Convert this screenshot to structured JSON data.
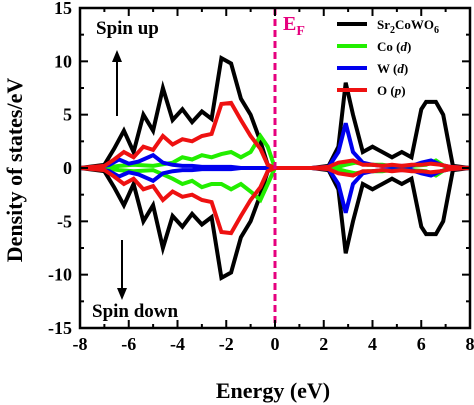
{
  "chart_data": {
    "type": "line",
    "xlabel": "Energy (eV)",
    "ylabel": "Density of states/eV",
    "xlim": [
      -8,
      8
    ],
    "ylim": [
      -15,
      15
    ],
    "x_ticks": [
      -8,
      -6,
      -4,
      -2,
      0,
      2,
      4,
      6,
      8
    ],
    "y_ticks": [
      -15,
      -10,
      -5,
      0,
      5,
      10,
      15
    ],
    "grid": false,
    "legend_position": "top-right",
    "fermi_level": {
      "x": 0,
      "label": "E",
      "subscript": "F",
      "color": "#e6007e"
    },
    "annotations": [
      {
        "text": "Spin up",
        "arrow": "up"
      },
      {
        "text": "Spin down",
        "arrow": "down"
      }
    ],
    "series": [
      {
        "legend_main": "Sr",
        "legend_sub": "2",
        "legend_main2": "CoWO",
        "legend_sub2": "6",
        "color": "#000000",
        "x": [
          -8.0,
          -7.0,
          -6.6,
          -6.2,
          -5.8,
          -5.4,
          -5.0,
          -4.6,
          -4.2,
          -3.8,
          -3.4,
          -3.0,
          -2.6,
          -2.2,
          -1.8,
          -1.4,
          -1.0,
          -0.6,
          -0.3,
          0.0,
          1.5,
          2.2,
          2.6,
          2.9,
          3.2,
          3.6,
          4.0,
          4.4,
          4.8,
          5.2,
          5.6,
          6.0,
          6.2,
          6.6,
          6.9,
          7.3,
          8.0
        ],
        "up": [
          0,
          0.3,
          1.8,
          3.5,
          1.5,
          5.0,
          3.5,
          7.5,
          4.5,
          5.5,
          4.3,
          5.3,
          4.6,
          10.3,
          9.8,
          6.5,
          5.0,
          2.5,
          0.3,
          0,
          0,
          0.2,
          2.0,
          8.0,
          5.0,
          1.5,
          2.0,
          1.5,
          1.0,
          1.5,
          1.0,
          5.5,
          6.2,
          6.2,
          5.0,
          0.2,
          0
        ],
        "down": [
          0,
          -0.3,
          -1.8,
          -3.5,
          -1.5,
          -5.0,
          -3.5,
          -7.5,
          -4.5,
          -5.5,
          -4.3,
          -5.3,
          -4.6,
          -10.3,
          -9.8,
          -6.5,
          -5.0,
          -2.5,
          -0.3,
          0,
          0,
          -0.2,
          -2.0,
          -8.0,
          -5.0,
          -1.5,
          -2.0,
          -1.5,
          -1.0,
          -1.5,
          -1.0,
          -5.5,
          -6.2,
          -6.2,
          -5.0,
          -0.2,
          0
        ]
      },
      {
        "legend_main": "Co (",
        "legend_ital": "d",
        "legend_end": ")",
        "color": "#22ee00",
        "x": [
          -8.0,
          -7.0,
          -6.4,
          -5.8,
          -5.0,
          -4.2,
          -3.8,
          -3.4,
          -3.0,
          -2.6,
          -2.2,
          -1.8,
          -1.4,
          -1.0,
          -0.6,
          -0.3,
          0.0,
          1.5,
          2.4,
          2.9,
          3.3,
          3.8,
          4.4,
          5.0,
          5.6,
          6.2,
          6.6,
          7.0,
          8.0
        ],
        "up": [
          0,
          0,
          0.2,
          0.3,
          0.2,
          0.5,
          1.0,
          0.8,
          1.2,
          1.0,
          1.3,
          1.5,
          1.0,
          1.5,
          3.0,
          2.0,
          0,
          0,
          0,
          0.3,
          0.5,
          0.3,
          0.3,
          0.1,
          0.2,
          0.3,
          0.7,
          0.1,
          0
        ],
        "down": [
          0,
          0,
          -0.2,
          -0.3,
          -0.2,
          -1.0,
          -1.5,
          -1.2,
          -1.8,
          -1.5,
          -1.5,
          -2.0,
          -1.5,
          -2.2,
          -3.0,
          -1.5,
          0,
          0,
          0,
          -0.3,
          -0.5,
          -0.3,
          -0.3,
          -0.1,
          -0.2,
          -0.3,
          -0.7,
          -0.1,
          0
        ]
      },
      {
        "legend_main": "W (",
        "legend_ital": "d",
        "legend_end": ")",
        "color": "#0000ee",
        "x": [
          -8.0,
          -7.2,
          -6.8,
          -6.4,
          -6.0,
          -5.6,
          -5.0,
          -4.6,
          -4.2,
          -3.8,
          -3.4,
          -3.0,
          -2.6,
          -2.2,
          -1.8,
          -1.4,
          -1.0,
          -0.6,
          0.0,
          1.5,
          2.2,
          2.6,
          2.9,
          3.2,
          3.6,
          4.0,
          4.4,
          4.8,
          5.2,
          5.6,
          6.0,
          6.4,
          6.8,
          7.2,
          8.0
        ],
        "up": [
          0,
          0.1,
          0.3,
          0.8,
          0.4,
          0.6,
          1.2,
          0.5,
          0.3,
          0.2,
          0.2,
          0.1,
          0.1,
          0.1,
          0.1,
          0.0,
          0.0,
          0.0,
          0,
          0,
          0.1,
          1.5,
          4.2,
          1.5,
          0.5,
          0.3,
          0.2,
          0.2,
          0.2,
          0.2,
          0.5,
          0.7,
          0.3,
          0.1,
          0
        ],
        "down": [
          0,
          -0.1,
          -0.3,
          -0.8,
          -0.4,
          -0.6,
          -1.2,
          -0.5,
          -0.3,
          -0.2,
          -0.2,
          -0.1,
          -0.1,
          -0.1,
          -0.1,
          0.0,
          0.0,
          0.0,
          0,
          0,
          -0.1,
          -1.5,
          -4.2,
          -1.5,
          -0.5,
          -0.3,
          -0.2,
          -0.2,
          -0.2,
          -0.2,
          -0.5,
          -0.7,
          -0.3,
          -0.1,
          0
        ]
      },
      {
        "legend_main": "O (",
        "legend_ital": "p",
        "legend_end": ")",
        "color": "#ee1111",
        "x": [
          -8.0,
          -7.0,
          -6.6,
          -6.2,
          -5.8,
          -5.4,
          -5.0,
          -4.6,
          -4.2,
          -3.8,
          -3.4,
          -3.0,
          -2.6,
          -2.2,
          -1.8,
          -1.4,
          -1.0,
          -0.6,
          -0.3,
          0.0,
          1.5,
          2.2,
          2.6,
          2.9,
          3.2,
          3.6,
          4.0,
          4.4,
          4.8,
          5.2,
          5.6,
          6.0,
          6.4,
          6.8,
          7.2,
          8.0
        ],
        "up": [
          0,
          0.2,
          0.8,
          1.5,
          1.0,
          2.0,
          1.7,
          3.0,
          2.2,
          2.7,
          2.5,
          3.0,
          3.2,
          6.0,
          6.1,
          4.5,
          3.0,
          1.8,
          0.3,
          0,
          0,
          0.1,
          0.5,
          0.6,
          0.7,
          0.3,
          0.3,
          0.2,
          0.3,
          0.2,
          0.3,
          0.3,
          0.4,
          0.3,
          0.1,
          0
        ],
        "down": [
          0,
          -0.2,
          -0.8,
          -1.5,
          -1.0,
          -2.0,
          -1.7,
          -3.0,
          -2.2,
          -2.7,
          -2.5,
          -3.0,
          -3.2,
          -6.0,
          -6.1,
          -4.5,
          -3.0,
          -1.8,
          -0.3,
          0,
          0,
          -0.1,
          -0.5,
          -0.6,
          -0.7,
          -0.3,
          -0.3,
          -0.2,
          -0.3,
          -0.2,
          -0.3,
          -0.3,
          -0.4,
          -0.3,
          -0.1,
          0
        ]
      }
    ]
  }
}
